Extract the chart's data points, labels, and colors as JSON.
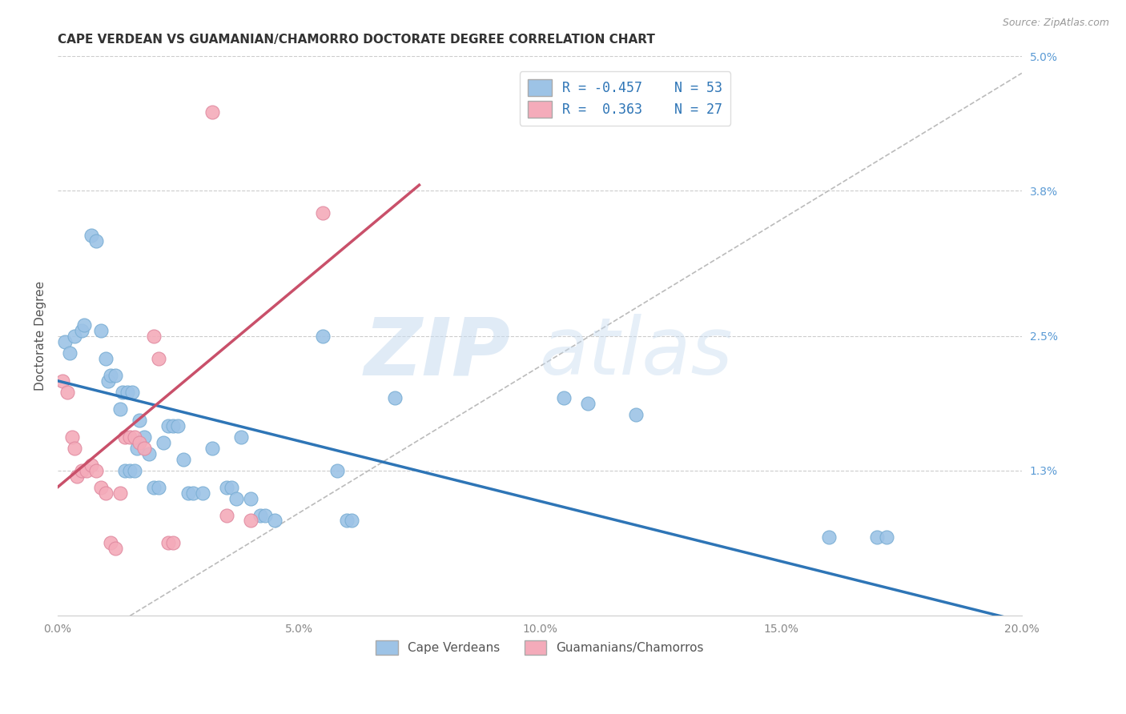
{
  "title": "CAPE VERDEAN VS GUAMANIAN/CHAMORRO DOCTORATE DEGREE CORRELATION CHART",
  "source": "Source: ZipAtlas.com",
  "xlabel_ticks": [
    "0.0%",
    "5.0%",
    "10.0%",
    "15.0%",
    "20.0%"
  ],
  "xlabel_tick_vals": [
    0.0,
    5.0,
    10.0,
    15.0,
    20.0
  ],
  "ylabel": "Doctorate Degree",
  "right_yticks": [
    "5.0%",
    "3.8%",
    "2.5%",
    "1.3%"
  ],
  "right_ytick_vals": [
    5.0,
    3.8,
    2.5,
    1.3
  ],
  "xmin": 0.0,
  "xmax": 20.0,
  "ymin": 0.0,
  "ymax": 5.0,
  "blue_color": "#9DC3E6",
  "blue_line_color": "#2E75B6",
  "pink_color": "#F4ABBA",
  "pink_line_color": "#C9506A",
  "gray_dash_color": "#BBBBBB",
  "legend_blue_r": "-0.457",
  "legend_blue_n": "53",
  "legend_pink_r": "0.363",
  "legend_pink_n": "27",
  "watermark_zip": "ZIP",
  "watermark_atlas": "atlas",
  "blue_line_x0": 0.0,
  "blue_line_y0": 2.1,
  "blue_line_x1": 20.0,
  "blue_line_y1": -0.05,
  "pink_line_x0": 0.0,
  "pink_line_y0": 1.15,
  "pink_line_x1": 7.5,
  "pink_line_y1": 3.85,
  "gray_line_x0": 1.5,
  "gray_line_y0": 0.0,
  "gray_line_x1": 20.0,
  "gray_line_y1": 4.85,
  "blue_dots": [
    [
      0.15,
      2.45
    ],
    [
      0.25,
      2.35
    ],
    [
      0.35,
      2.5
    ],
    [
      0.5,
      2.55
    ],
    [
      0.55,
      2.6
    ],
    [
      0.7,
      3.4
    ],
    [
      0.8,
      3.35
    ],
    [
      0.9,
      2.55
    ],
    [
      1.0,
      2.3
    ],
    [
      1.05,
      2.1
    ],
    [
      1.1,
      2.15
    ],
    [
      1.2,
      2.15
    ],
    [
      1.3,
      1.85
    ],
    [
      1.35,
      2.0
    ],
    [
      1.4,
      1.3
    ],
    [
      1.45,
      2.0
    ],
    [
      1.5,
      1.3
    ],
    [
      1.55,
      2.0
    ],
    [
      1.6,
      1.3
    ],
    [
      1.65,
      1.5
    ],
    [
      1.7,
      1.75
    ],
    [
      1.8,
      1.6
    ],
    [
      1.9,
      1.45
    ],
    [
      2.0,
      1.15
    ],
    [
      2.1,
      1.15
    ],
    [
      2.2,
      1.55
    ],
    [
      2.3,
      1.7
    ],
    [
      2.4,
      1.7
    ],
    [
      2.5,
      1.7
    ],
    [
      2.6,
      1.4
    ],
    [
      2.7,
      1.1
    ],
    [
      2.8,
      1.1
    ],
    [
      3.0,
      1.1
    ],
    [
      3.2,
      1.5
    ],
    [
      3.5,
      1.15
    ],
    [
      3.6,
      1.15
    ],
    [
      3.7,
      1.05
    ],
    [
      3.8,
      1.6
    ],
    [
      4.0,
      1.05
    ],
    [
      4.2,
      0.9
    ],
    [
      4.3,
      0.9
    ],
    [
      4.5,
      0.85
    ],
    [
      5.5,
      2.5
    ],
    [
      5.8,
      1.3
    ],
    [
      6.0,
      0.85
    ],
    [
      6.1,
      0.85
    ],
    [
      7.0,
      1.95
    ],
    [
      10.5,
      1.95
    ],
    [
      11.0,
      1.9
    ],
    [
      12.0,
      1.8
    ],
    [
      16.0,
      0.7
    ],
    [
      17.0,
      0.7
    ],
    [
      17.2,
      0.7
    ]
  ],
  "pink_dots": [
    [
      0.1,
      2.1
    ],
    [
      0.2,
      2.0
    ],
    [
      0.3,
      1.6
    ],
    [
      0.35,
      1.5
    ],
    [
      0.4,
      1.25
    ],
    [
      0.5,
      1.3
    ],
    [
      0.6,
      1.3
    ],
    [
      0.7,
      1.35
    ],
    [
      0.8,
      1.3
    ],
    [
      0.9,
      1.15
    ],
    [
      1.0,
      1.1
    ],
    [
      1.1,
      0.65
    ],
    [
      1.2,
      0.6
    ],
    [
      1.3,
      1.1
    ],
    [
      1.4,
      1.6
    ],
    [
      1.5,
      1.6
    ],
    [
      1.6,
      1.6
    ],
    [
      1.7,
      1.55
    ],
    [
      1.8,
      1.5
    ],
    [
      2.0,
      2.5
    ],
    [
      2.1,
      2.3
    ],
    [
      2.3,
      0.65
    ],
    [
      2.4,
      0.65
    ],
    [
      3.5,
      0.9
    ],
    [
      4.0,
      0.85
    ],
    [
      5.5,
      3.6
    ],
    [
      3.2,
      4.5
    ]
  ]
}
